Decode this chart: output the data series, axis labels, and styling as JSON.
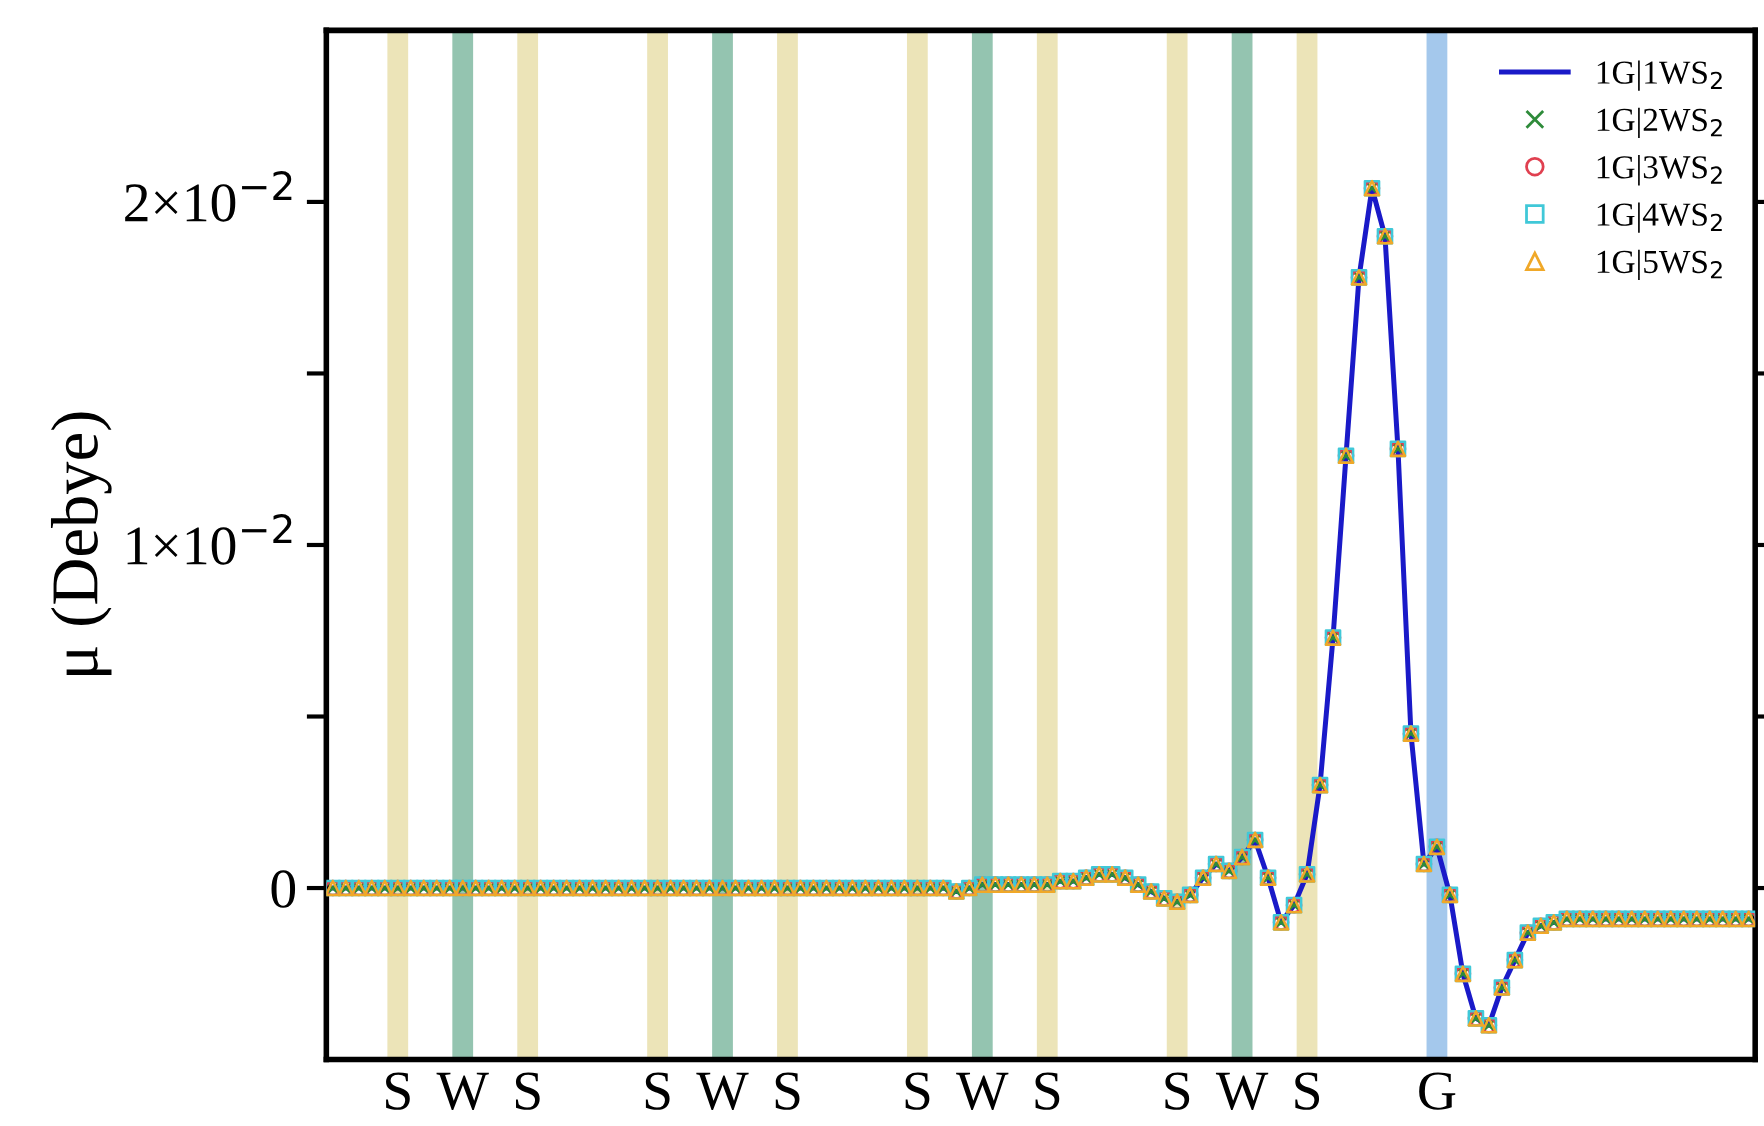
{
  "chart_data": {
    "type": "scatter",
    "ylabel": "μ (Debye)",
    "categories": [
      null,
      null,
      null,
      null,
      null,
      "S",
      null,
      null,
      null,
      null,
      "W",
      null,
      null,
      null,
      null,
      "S",
      null,
      null,
      null,
      null,
      null,
      null,
      null,
      null,
      null,
      "S",
      null,
      null,
      null,
      null,
      "W",
      null,
      null,
      null,
      null,
      "S",
      null,
      null,
      null,
      null,
      null,
      null,
      null,
      null,
      null,
      "S",
      null,
      null,
      null,
      null,
      "W",
      null,
      null,
      null,
      null,
      "S",
      null,
      null,
      null,
      null,
      null,
      null,
      null,
      null,
      null,
      "S",
      null,
      null,
      null,
      null,
      "W",
      null,
      null,
      null,
      null,
      "S",
      null,
      null,
      null,
      null,
      null,
      null,
      null,
      null,
      null,
      "G",
      null,
      null,
      null,
      null,
      null,
      null,
      null,
      null,
      null,
      null,
      null,
      null,
      null,
      null,
      null,
      null,
      null,
      null,
      null,
      null,
      null,
      null,
      null,
      null
    ],
    "ylim": [
      -0.005,
      0.025
    ],
    "yticks": [
      {
        "value": 0,
        "label": "0"
      },
      {
        "value": 0.005,
        "label": null
      },
      {
        "value": 0.01,
        "label": "1×10$^{−2}$"
      },
      {
        "value": 0.015,
        "label": null
      },
      {
        "value": 0.02,
        "label": "2×10$^{−2}$"
      }
    ],
    "series": [
      {
        "name": "1G|1WS$_{2}$",
        "type": "line",
        "marker": "none",
        "color": "#1a1ac8",
        "values": [
          0,
          0,
          0,
          0,
          0,
          0,
          0,
          0,
          0,
          0,
          0,
          0,
          0,
          0,
          0,
          0,
          0,
          0,
          0,
          0,
          0,
          0,
          0,
          0,
          0,
          0,
          0,
          0,
          0,
          0,
          0,
          0,
          0,
          0,
          0,
          0,
          0,
          0,
          0,
          0,
          0,
          0,
          0,
          0,
          0,
          0,
          0,
          0,
          -0.0001,
          0,
          0.0001,
          0.0001,
          0.0001,
          0.0001,
          0.0001,
          0.0001,
          0.0002,
          0.0002,
          0.0003,
          0.0004,
          0.0004,
          0.0003,
          0.0001,
          -0.0001,
          -0.0003,
          -0.0004,
          -0.0002,
          0.0003,
          0.0007,
          0.0005,
          0.0009,
          0.0014,
          0.0003,
          -0.001,
          -0.0005,
          0.0004,
          0.003,
          0.0073,
          0.0126,
          0.0178,
          0.0204,
          0.019,
          0.0128,
          0.0045,
          0.0007,
          0.0012,
          -0.0002,
          -0.0025,
          -0.0038,
          -0.004,
          -0.0029,
          -0.0021,
          -0.0013,
          -0.0011,
          -0.001,
          -0.0009,
          -0.0009,
          -0.0009,
          -0.0009,
          -0.0009,
          -0.0009,
          -0.0009,
          -0.0009,
          -0.0009,
          -0.0009,
          -0.0009,
          -0.0009,
          -0.0009,
          -0.0009,
          -0.0009
        ]
      },
      {
        "name": "1G|2WS$_{2}$",
        "marker": "cross",
        "color": "#2e8b3a",
        "values": [
          0,
          0,
          0,
          0,
          0,
          0,
          0,
          0,
          0,
          0,
          0,
          0,
          0,
          0,
          0,
          0,
          0,
          0,
          0,
          0,
          0,
          0,
          0,
          0,
          0,
          0,
          0,
          0,
          0,
          0,
          0,
          0,
          0,
          0,
          0,
          0,
          0,
          0,
          0,
          0,
          0,
          0,
          0,
          0,
          0,
          0,
          0,
          0,
          -0.0001,
          0,
          0.0001,
          0.0001,
          0.0001,
          0.0001,
          0.0001,
          0.0001,
          0.0002,
          0.0002,
          0.0003,
          0.0004,
          0.0004,
          0.0003,
          0.0001,
          -0.0001,
          -0.0003,
          -0.0004,
          -0.0002,
          0.0003,
          0.0007,
          0.0005,
          0.0009,
          0.0014,
          0.0003,
          -0.001,
          -0.0005,
          0.0004,
          0.003,
          0.0073,
          0.0126,
          0.0178,
          0.0204,
          0.019,
          0.0128,
          0.0045,
          0.0007,
          0.0012,
          -0.0002,
          -0.0025,
          -0.0038,
          -0.004,
          -0.0029,
          -0.0021,
          -0.0013,
          -0.0011,
          -0.001,
          -0.0009,
          -0.0009,
          -0.0009,
          -0.0009,
          -0.0009,
          -0.0009,
          -0.0009,
          -0.0009,
          -0.0009,
          -0.0009,
          -0.0009,
          -0.0009,
          -0.0009,
          -0.0009,
          -0.0009
        ]
      },
      {
        "name": "1G|3WS$_{2}$",
        "marker": "circle",
        "color": "#e04050",
        "values": [
          0,
          0,
          0,
          0,
          0,
          0,
          0,
          0,
          0,
          0,
          0,
          0,
          0,
          0,
          0,
          0,
          0,
          0,
          0,
          0,
          0,
          0,
          0,
          0,
          0,
          0,
          0,
          0,
          0,
          0,
          0,
          0,
          0,
          0,
          0,
          0,
          0,
          0,
          0,
          0,
          0,
          0,
          0,
          0,
          0,
          0,
          0,
          0,
          -0.0001,
          0,
          0.0001,
          0.0001,
          0.0001,
          0.0001,
          0.0001,
          0.0001,
          0.0002,
          0.0002,
          0.0003,
          0.0004,
          0.0004,
          0.0003,
          0.0001,
          -0.0001,
          -0.0003,
          -0.0004,
          -0.0002,
          0.0003,
          0.0007,
          0.0005,
          0.0009,
          0.0014,
          0.0003,
          -0.001,
          -0.0005,
          0.0004,
          0.003,
          0.0073,
          0.0126,
          0.0178,
          0.0204,
          0.019,
          0.0128,
          0.0045,
          0.0007,
          0.0012,
          -0.0002,
          -0.0025,
          -0.0038,
          -0.004,
          -0.0029,
          -0.0021,
          -0.0013,
          -0.0011,
          -0.001,
          -0.0009,
          -0.0009,
          -0.0009,
          -0.0009,
          -0.0009,
          -0.0009,
          -0.0009,
          -0.0009,
          -0.0009,
          -0.0009,
          -0.0009,
          -0.0009,
          -0.0009,
          -0.0009,
          -0.0009
        ]
      },
      {
        "name": "1G|4WS$_{2}$",
        "marker": "square",
        "color": "#40c8d8",
        "values": [
          0,
          0,
          0,
          0,
          0,
          0,
          0,
          0,
          0,
          0,
          0,
          0,
          0,
          0,
          0,
          0,
          0,
          0,
          0,
          0,
          0,
          0,
          0,
          0,
          0,
          0,
          0,
          0,
          0,
          0,
          0,
          0,
          0,
          0,
          0,
          0,
          0,
          0,
          0,
          0,
          0,
          0,
          0,
          0,
          0,
          0,
          0,
          0,
          -0.0001,
          0,
          0.0001,
          0.0001,
          0.0001,
          0.0001,
          0.0001,
          0.0001,
          0.0002,
          0.0002,
          0.0003,
          0.0004,
          0.0004,
          0.0003,
          0.0001,
          -0.0001,
          -0.0003,
          -0.0004,
          -0.0002,
          0.0003,
          0.0007,
          0.0005,
          0.0009,
          0.0014,
          0.0003,
          -0.001,
          -0.0005,
          0.0004,
          0.003,
          0.0073,
          0.0126,
          0.0178,
          0.0204,
          0.019,
          0.0128,
          0.0045,
          0.0007,
          0.0012,
          -0.0002,
          -0.0025,
          -0.0038,
          -0.004,
          -0.0029,
          -0.0021,
          -0.0013,
          -0.0011,
          -0.001,
          -0.0009,
          -0.0009,
          -0.0009,
          -0.0009,
          -0.0009,
          -0.0009,
          -0.0009,
          -0.0009,
          -0.0009,
          -0.0009,
          -0.0009,
          -0.0009,
          -0.0009,
          -0.0009,
          -0.0009
        ]
      },
      {
        "name": "1G|5WS$_{2}$",
        "marker": "triangle",
        "color": "#f0a828",
        "values": [
          0,
          0,
          0,
          0,
          0,
          0,
          0,
          0,
          0,
          0,
          0,
          0,
          0,
          0,
          0,
          0,
          0,
          0,
          0,
          0,
          0,
          0,
          0,
          0,
          0,
          0,
          0,
          0,
          0,
          0,
          0,
          0,
          0,
          0,
          0,
          0,
          0,
          0,
          0,
          0,
          0,
          0,
          0,
          0,
          0,
          0,
          0,
          0,
          -0.0001,
          0,
          0.0001,
          0.0001,
          0.0001,
          0.0001,
          0.0001,
          0.0001,
          0.0002,
          0.0002,
          0.0003,
          0.0004,
          0.0004,
          0.0003,
          0.0001,
          -0.0001,
          -0.0003,
          -0.0004,
          -0.0002,
          0.0003,
          0.0007,
          0.0005,
          0.0009,
          0.0014,
          0.0003,
          -0.001,
          -0.0005,
          0.0004,
          0.003,
          0.0073,
          0.0126,
          0.0178,
          0.0204,
          0.019,
          0.0128,
          0.0045,
          0.0007,
          0.0012,
          -0.0002,
          -0.0025,
          -0.0038,
          -0.004,
          -0.0029,
          -0.0021,
          -0.0013,
          -0.0011,
          -0.001,
          -0.0009,
          -0.0009,
          -0.0009,
          -0.0009,
          -0.0009,
          -0.0009,
          -0.0009,
          -0.0009,
          -0.0009,
          -0.0009,
          -0.0009,
          -0.0009,
          -0.0009,
          -0.0009,
          -0.0009
        ]
      }
    ],
    "legend": "top right",
    "grid": false
  }
}
